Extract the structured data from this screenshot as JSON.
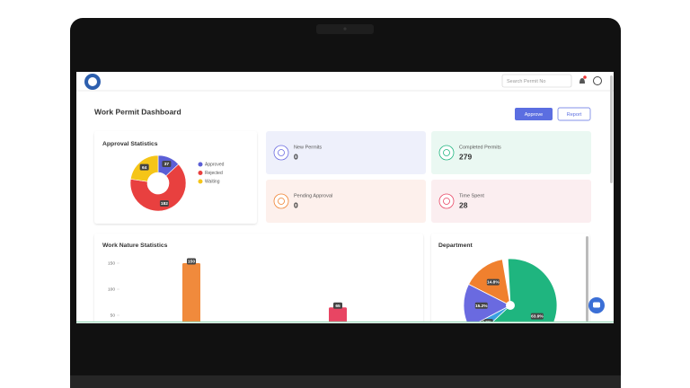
{
  "header": {
    "search_placeholder": "Search Permit No"
  },
  "title": "Work Permit Dashboard",
  "buttons": [
    "Approve",
    "Report"
  ],
  "cards": [
    {
      "label": "New Permits",
      "value": 0
    },
    {
      "label": "Completed Permits",
      "value": 279
    },
    {
      "label": "Pending Approval",
      "value": 0
    },
    {
      "label": "Time Spent",
      "value": 28
    }
  ],
  "chart_data": [
    {
      "type": "donut",
      "title": "Approval Statistics",
      "categories": [
        "Approved",
        "Rejected",
        "Waiting"
      ],
      "values": [
        37,
        182,
        64
      ],
      "colors": [
        "#5b5fd6",
        "#e8403f",
        "#f5c518"
      ],
      "legend": "right"
    },
    {
      "type": "bar",
      "title": "Work Nature Statistics",
      "categories": [
        null,
        null
      ],
      "values": [
        150,
        65
      ],
      "colors": [
        "#f08a3c",
        "#e84563"
      ],
      "ylim": [
        0,
        150
      ],
      "yticks": [
        50,
        100,
        150
      ]
    },
    {
      "type": "pie",
      "title": "Department",
      "categories": [
        null,
        null,
        null,
        null
      ],
      "values": [
        63.9,
        4.2,
        15.2,
        14.8
      ],
      "value_labels": [
        "63.9%",
        "4.2%",
        "15.2%",
        "14.8%"
      ],
      "colors": [
        "#1fb57f",
        "#3aa0e0",
        "#6a6ae0",
        "#f0802e"
      ]
    }
  ]
}
